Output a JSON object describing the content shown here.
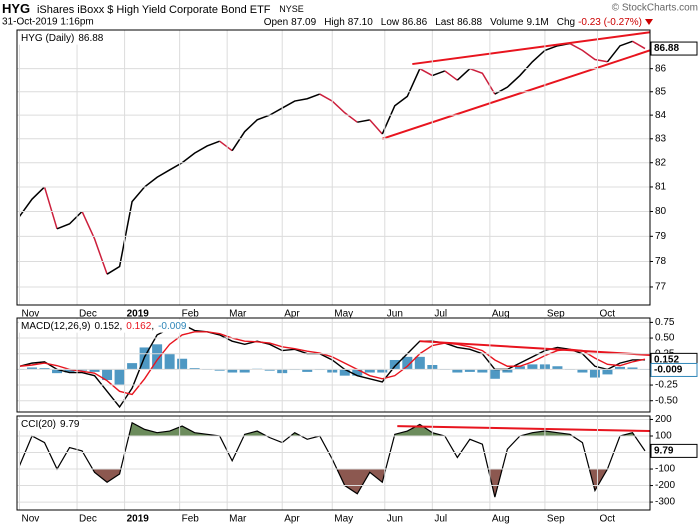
{
  "header": {
    "symbol": "HYG",
    "name": "iShares iBoxx $ High Yield Corporate Bond ETF",
    "exchange": "NYSE",
    "date": "31-Oct-2019 1:16pm",
    "watermark": "© StockCharts.com",
    "quote": [
      {
        "label": "Open",
        "value": "87.09"
      },
      {
        "label": "High",
        "value": "87.10"
      },
      {
        "label": "Low",
        "value": "86.86"
      },
      {
        "label": "Last",
        "value": "86.88"
      },
      {
        "label": "Volume",
        "value": "9.1M"
      },
      {
        "label": "Chg",
        "value": "-0.23 (-0.27%)",
        "color": "#cc0000"
      }
    ]
  },
  "chart_data": [
    {
      "type": "line",
      "legend": "HYG (Daily)",
      "log_scale": true,
      "grid": true,
      "x": [
        0,
        5,
        10,
        15,
        20,
        25,
        30,
        35,
        40,
        45,
        50,
        55,
        60,
        65,
        70,
        75,
        80,
        85,
        90,
        95,
        100,
        105,
        110,
        115,
        120,
        125,
        130,
        135,
        140,
        145,
        150,
        155,
        160,
        165,
        170,
        175,
        180,
        185,
        190,
        195,
        200,
        205,
        210,
        215,
        220,
        225,
        230,
        235,
        240,
        245,
        250
      ],
      "xlim": [
        -1,
        252
      ],
      "xticks": [
        {
          "value": 0,
          "label": "Nov"
        },
        {
          "value": 23,
          "label": "Dec"
        },
        {
          "value": 42,
          "label": "2019"
        },
        {
          "value": 64,
          "label": "Feb"
        },
        {
          "value": 83,
          "label": "Mar"
        },
        {
          "value": 105,
          "label": "Apr"
        },
        {
          "value": 125,
          "label": "May"
        },
        {
          "value": 146,
          "label": "Jun"
        },
        {
          "value": 165,
          "label": "Jul"
        },
        {
          "value": 188,
          "label": "Aug"
        },
        {
          "value": 210,
          "label": "Sep"
        },
        {
          "value": 231,
          "label": "Oct"
        }
      ],
      "ylim": [
        76.3,
        87.7
      ],
      "yticks": [
        77,
        78,
        79,
        80,
        81,
        82,
        83,
        84,
        85,
        86
      ],
      "series": [
        {
          "color": "#000000",
          "down_color": "#cc1f3c",
          "value_box": true,
          "values": [
            79.8,
            80.5,
            81.0,
            79.3,
            79.5,
            80.0,
            78.9,
            77.5,
            77.8,
            80.4,
            81.0,
            81.4,
            81.7,
            82.0,
            82.4,
            82.7,
            82.9,
            82.5,
            83.3,
            83.8,
            84.0,
            84.3,
            84.6,
            84.7,
            84.9,
            84.6,
            84.1,
            83.7,
            83.8,
            83.2,
            84.4,
            84.8,
            86.0,
            85.7,
            85.9,
            85.5,
            86.0,
            85.8,
            84.9,
            85.2,
            85.7,
            86.3,
            86.8,
            87.0,
            87.1,
            86.8,
            86.4,
            86.3,
            87.0,
            87.2,
            86.88
          ]
        }
      ],
      "trendlines": [
        {
          "color": "#e8141e",
          "x": [
            157,
            252
          ],
          "y": [
            86.2,
            87.6
          ]
        },
        {
          "color": "#e8141e",
          "x": [
            145,
            252
          ],
          "y": [
            83.0,
            86.8
          ]
        }
      ]
    },
    {
      "type": "macd",
      "legend": "MACD(12,26,9)",
      "legend_separator": ",",
      "grid": true,
      "x": [
        0,
        5,
        10,
        15,
        20,
        25,
        30,
        35,
        40,
        45,
        50,
        55,
        60,
        65,
        70,
        75,
        80,
        85,
        90,
        95,
        100,
        105,
        110,
        115,
        120,
        125,
        130,
        135,
        140,
        145,
        150,
        155,
        160,
        165,
        170,
        175,
        180,
        185,
        190,
        195,
        200,
        205,
        210,
        215,
        220,
        225,
        230,
        235,
        240,
        245,
        250
      ],
      "xlim": [
        -1,
        252
      ],
      "xticks": [
        0,
        23,
        42,
        64,
        83,
        105,
        125,
        146,
        165,
        188,
        210,
        231
      ],
      "ylim": [
        -0.68,
        0.82
      ],
      "yticks": [
        0.75,
        {
          "value": 0.5,
          "label": "0.50"
        },
        0.25,
        {
          "value": 0,
          "label": "0.00"
        },
        -0.25,
        {
          "value": -0.5,
          "label": "-0.50"
        }
      ],
      "series": [
        {
          "kind": "line",
          "color": "#000000",
          "value_box": true,
          "values": [
            0.05,
            0.1,
            0.12,
            0,
            -0.05,
            -0.05,
            -0.1,
            -0.35,
            -0.6,
            -0.3,
            0.2,
            0.55,
            0.65,
            0.72,
            0.62,
            0.6,
            0.55,
            0.45,
            0.4,
            0.45,
            0.4,
            0.3,
            0.32,
            0.25,
            0.25,
            0.15,
            0,
            -0.1,
            -0.15,
            -0.2,
            0.05,
            0.25,
            0.45,
            0.45,
            0.42,
            0.35,
            0.32,
            0.25,
            0,
            0,
            0.1,
            0.2,
            0.3,
            0.35,
            0.32,
            0.25,
            0.05,
            0,
            0.1,
            0.15,
            0.152
          ]
        },
        {
          "kind": "line",
          "color": "#e8141e",
          "values": [
            0.05,
            0.07,
            0.1,
            0.06,
            0,
            -0.03,
            -0.06,
            -0.18,
            -0.35,
            -0.4,
            -0.15,
            0.15,
            0.4,
            0.55,
            0.6,
            0.6,
            0.57,
            0.5,
            0.45,
            0.44,
            0.42,
            0.36,
            0.33,
            0.29,
            0.26,
            0.2,
            0.1,
            0,
            -0.1,
            -0.15,
            -0.1,
            0.05,
            0.25,
            0.38,
            0.42,
            0.4,
            0.36,
            0.3,
            0.15,
            0.05,
            0.05,
            0.12,
            0.22,
            0.3,
            0.32,
            0.3,
            0.18,
            0.08,
            0.06,
            0.12,
            0.162
          ]
        },
        {
          "kind": "histogram",
          "color": "#2f86b8",
          "value_box": true,
          "values": [
            0,
            0.03,
            0.02,
            -0.06,
            -0.05,
            -0.02,
            -0.04,
            -0.17,
            -0.25,
            0.1,
            0.35,
            0.4,
            0.25,
            0.17,
            0.02,
            0,
            -0.02,
            -0.05,
            -0.05,
            0.01,
            -0.02,
            -0.06,
            -0.01,
            -0.04,
            -0.01,
            -0.05,
            -0.1,
            -0.1,
            -0.05,
            -0.05,
            0.15,
            0.2,
            0.2,
            0.07,
            0,
            -0.05,
            -0.04,
            -0.05,
            -0.15,
            -0.05,
            0.05,
            0.08,
            0.08,
            0.05,
            0,
            -0.05,
            -0.13,
            -0.08,
            0.04,
            0.03,
            -0.009
          ]
        }
      ],
      "trendlines": [
        {
          "color": "#e8141e",
          "x": [
            160,
            252
          ],
          "y": [
            0.45,
            0.23
          ]
        }
      ]
    },
    {
      "type": "cci",
      "legend": "CCI(20)",
      "grid": true,
      "overbought": 100,
      "oversold": -100,
      "up_fill": "#6c8c5c",
      "down_fill": "#8c5850",
      "x": [
        0,
        5,
        10,
        15,
        20,
        25,
        30,
        35,
        40,
        45,
        50,
        55,
        60,
        65,
        70,
        75,
        80,
        85,
        90,
        95,
        100,
        105,
        110,
        115,
        120,
        125,
        130,
        135,
        140,
        145,
        150,
        155,
        160,
        165,
        170,
        175,
        180,
        185,
        190,
        195,
        200,
        205,
        210,
        215,
        220,
        225,
        230,
        235,
        240,
        245,
        250
      ],
      "xlim": [
        -1,
        252
      ],
      "xticks": [
        {
          "value": 0,
          "label": "Nov"
        },
        {
          "value": 23,
          "label": "Dec"
        },
        {
          "value": 42,
          "label": "2019"
        },
        {
          "value": 64,
          "label": "Feb"
        },
        {
          "value": 83,
          "label": "Mar"
        },
        {
          "value": 105,
          "label": "Apr"
        },
        {
          "value": 125,
          "label": "May"
        },
        {
          "value": 146,
          "label": "Jun"
        },
        {
          "value": 165,
          "label": "Jul"
        },
        {
          "value": 188,
          "label": "Aug"
        },
        {
          "value": 210,
          "label": "Sep"
        },
        {
          "value": 231,
          "label": "Oct"
        }
      ],
      "ylim": [
        -348,
        221
      ],
      "yticks": [
        200,
        100,
        0,
        -100,
        -200,
        -300
      ],
      "series": [
        {
          "color": "#000000",
          "value_box": true,
          "values": [
            -80,
            100,
            60,
            -100,
            30,
            10,
            -120,
            -180,
            -130,
            180,
            140,
            120,
            130,
            160,
            120,
            110,
            100,
            -50,
            110,
            130,
            90,
            60,
            120,
            80,
            100,
            -40,
            -200,
            -250,
            -120,
            -180,
            110,
            130,
            170,
            120,
            100,
            -30,
            80,
            50,
            -270,
            20,
            100,
            120,
            130,
            120,
            110,
            60,
            -230,
            -100,
            100,
            120,
            9.79
          ]
        }
      ],
      "trendlines": [
        {
          "color": "#e8141e",
          "x": [
            151,
            252
          ],
          "y": [
            160,
            130
          ]
        }
      ]
    }
  ]
}
